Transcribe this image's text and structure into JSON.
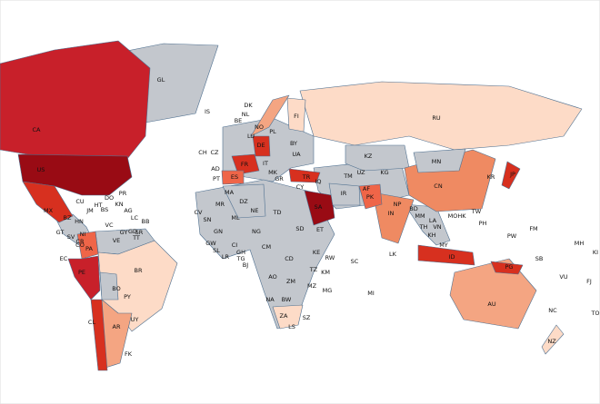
{
  "countries": [
    {
      "code": "GL",
      "color": "#c3c7cd"
    },
    {
      "code": "CA",
      "color": "#c8202a"
    },
    {
      "code": "US",
      "color": "#990b14"
    },
    {
      "code": "MX",
      "color": "#d7301f"
    },
    {
      "code": "BR",
      "color": "#fddbc7"
    },
    {
      "code": "CO",
      "color": "#ef6548"
    },
    {
      "code": "PE",
      "color": "#c8202a"
    },
    {
      "code": "AR",
      "color": "#f4a582"
    },
    {
      "code": "CL",
      "color": "#d7301f"
    },
    {
      "code": "BO",
      "color": "#c3c7cd"
    },
    {
      "code": "RU",
      "color": "#fddbc7"
    },
    {
      "code": "KZ",
      "color": "#c3c7cd"
    },
    {
      "code": "CN",
      "color": "#ef8a62"
    },
    {
      "code": "IN",
      "color": "#ef8a62"
    },
    {
      "code": "SA",
      "color": "#990b14"
    },
    {
      "code": "TR",
      "color": "#d7301f"
    },
    {
      "code": "IR",
      "color": "#c3c7cd"
    },
    {
      "code": "AU",
      "color": "#f4a582"
    },
    {
      "code": "ID",
      "color": "#d7301f"
    },
    {
      "code": "PG",
      "color": "#d7301f"
    },
    {
      "code": "JP",
      "color": "#d7301f"
    },
    {
      "code": "FR",
      "color": "#d7301f"
    },
    {
      "code": "ES",
      "color": "#ef6548"
    },
    {
      "code": "DE",
      "color": "#d7301f"
    },
    {
      "code": "MN",
      "color": "#c3c7cd"
    },
    {
      "code": "PK",
      "color": "#ef6548"
    },
    {
      "code": "ZA",
      "color": "#fddbc7"
    },
    {
      "code": "NO",
      "color": "#f4a582"
    },
    {
      "code": "FI",
      "color": "#fddbc7"
    },
    {
      "code": "DZ",
      "color": "#c3c7cd"
    },
    {
      "code": "NZ",
      "color": "#fddbc7"
    },
    {
      "code": "IS"
    },
    {
      "code": "DK"
    },
    {
      "code": "BE"
    },
    {
      "code": "NL"
    },
    {
      "code": "LU"
    },
    {
      "code": "CH"
    },
    {
      "code": "CZ"
    },
    {
      "code": "PL"
    },
    {
      "code": "BY"
    },
    {
      "code": "UA"
    },
    {
      "code": "AD"
    },
    {
      "code": "PT"
    },
    {
      "code": "IT"
    },
    {
      "code": "GR"
    },
    {
      "code": "MA"
    },
    {
      "code": "MK"
    },
    {
      "code": "CY"
    },
    {
      "code": "IQ"
    },
    {
      "code": "AF"
    },
    {
      "code": "UZ"
    },
    {
      "code": "TM"
    },
    {
      "code": "KG"
    },
    {
      "code": "NP"
    },
    {
      "code": "BD"
    },
    {
      "code": "MM"
    },
    {
      "code": "TH"
    },
    {
      "code": "VN"
    },
    {
      "code": "LA"
    },
    {
      "code": "KH"
    },
    {
      "code": "MY"
    },
    {
      "code": "PH"
    },
    {
      "code": "TW"
    },
    {
      "code": "HK"
    },
    {
      "code": "MO"
    },
    {
      "code": "KR"
    },
    {
      "code": "LK"
    },
    {
      "code": "NE"
    },
    {
      "code": "ML"
    },
    {
      "code": "TD"
    },
    {
      "code": "SD"
    },
    {
      "code": "NG"
    },
    {
      "code": "ET"
    },
    {
      "code": "CM"
    },
    {
      "code": "KE"
    },
    {
      "code": "CD"
    },
    {
      "code": "TZ"
    },
    {
      "code": "AO"
    },
    {
      "code": "ZM"
    },
    {
      "code": "MZ"
    },
    {
      "code": "BW"
    },
    {
      "code": "NA"
    },
    {
      "code": "MG"
    },
    {
      "code": "SZ"
    },
    {
      "code": "LS"
    },
    {
      "code": "MR"
    },
    {
      "code": "SN"
    },
    {
      "code": "GW"
    },
    {
      "code": "GN"
    },
    {
      "code": "SL"
    },
    {
      "code": "LR"
    },
    {
      "code": "CI"
    },
    {
      "code": "GH"
    },
    {
      "code": "TG"
    },
    {
      "code": "BJ"
    },
    {
      "code": "CV"
    },
    {
      "code": "CU"
    },
    {
      "code": "DO"
    },
    {
      "code": "HT"
    },
    {
      "code": "JM"
    },
    {
      "code": "BZ"
    },
    {
      "code": "GT"
    },
    {
      "code": "HN"
    },
    {
      "code": "NI"
    },
    {
      "code": "CR"
    },
    {
      "code": "PA"
    },
    {
      "code": "SV"
    },
    {
      "code": "VE"
    },
    {
      "code": "GY"
    },
    {
      "code": "SR"
    },
    {
      "code": "EC"
    },
    {
      "code": "PY"
    },
    {
      "code": "UY"
    },
    {
      "code": "FK"
    },
    {
      "code": "PR"
    },
    {
      "code": "KN"
    },
    {
      "code": "AG"
    },
    {
      "code": "BB"
    },
    {
      "code": "GD"
    },
    {
      "code": "TT"
    },
    {
      "code": "VC"
    },
    {
      "code": "LC"
    },
    {
      "code": "BS"
    },
    {
      "code": "FM"
    },
    {
      "code": "MH"
    },
    {
      "code": "KI"
    },
    {
      "code": "PW"
    },
    {
      "code": "SB"
    },
    {
      "code": "VU"
    },
    {
      "code": "FJ"
    },
    {
      "code": "NC"
    },
    {
      "code": "TO"
    },
    {
      "code": "MI"
    },
    {
      "code": "SC"
    },
    {
      "code": "RW"
    },
    {
      "code": "KM"
    }
  ]
}
